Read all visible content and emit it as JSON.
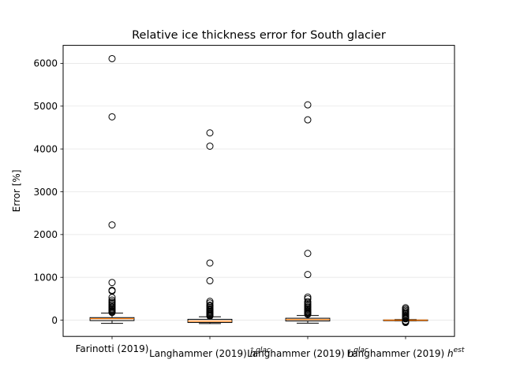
{
  "chart_data": {
    "type": "box",
    "title": "Relative ice thickness error for South glacier",
    "xlabel": "",
    "ylabel": "Error [%]",
    "ylim": [
      -380,
      6420
    ],
    "yticks": [
      0,
      1000,
      2000,
      3000,
      4000,
      5000,
      6000
    ],
    "grid": "horizontal",
    "categories": [
      {
        "main": "Farinotti (2019)",
        "sup": ""
      },
      {
        "main": "Langhammer (2019) ",
        "sup": "glac"
      },
      {
        "main": "Langhammer (2019) ",
        "sup": "glac"
      },
      {
        "main": "Langhammer (2019) ",
        "sup": "est"
      }
    ],
    "category_symbols": [
      "",
      "ĥ",
      "h",
      "h"
    ],
    "boxes": [
      {
        "whisker_low": -75,
        "q1": -10,
        "median": 35,
        "q3": 60,
        "whisker_high": 165,
        "outliers": [
          6110,
          4750,
          2225,
          880,
          700,
          680,
          530,
          470,
          430,
          400,
          370,
          340,
          310,
          285,
          260,
          240,
          215,
          195,
          180
        ]
      },
      {
        "whisker_low": -80,
        "q1": -55,
        "median": -25,
        "q3": 20,
        "whisker_high": 80,
        "outliers": [
          4375,
          4065,
          1335,
          920,
          440,
          400,
          350,
          330,
          300,
          270,
          250,
          230,
          205,
          185,
          165,
          145,
          125,
          110,
          95
        ]
      },
      {
        "whisker_low": -70,
        "q1": -20,
        "median": 15,
        "q3": 45,
        "whisker_high": 110,
        "outliers": [
          5030,
          4680,
          1560,
          1065,
          540,
          500,
          430,
          400,
          370,
          340,
          310,
          290,
          260,
          240,
          215,
          195,
          175,
          155,
          135
        ]
      },
      {
        "whisker_low": -15,
        "q1": -5,
        "median": 0,
        "q3": 5,
        "whisker_high": 15,
        "outliers": [
          290,
          260,
          230,
          200,
          175,
          150,
          125,
          100,
          80,
          60,
          45,
          30,
          -20,
          -35,
          -45,
          -55
        ]
      }
    ],
    "colors": {
      "box": "#000000",
      "median": "#ff7f0e",
      "grid": "#e6e6e6"
    }
  }
}
